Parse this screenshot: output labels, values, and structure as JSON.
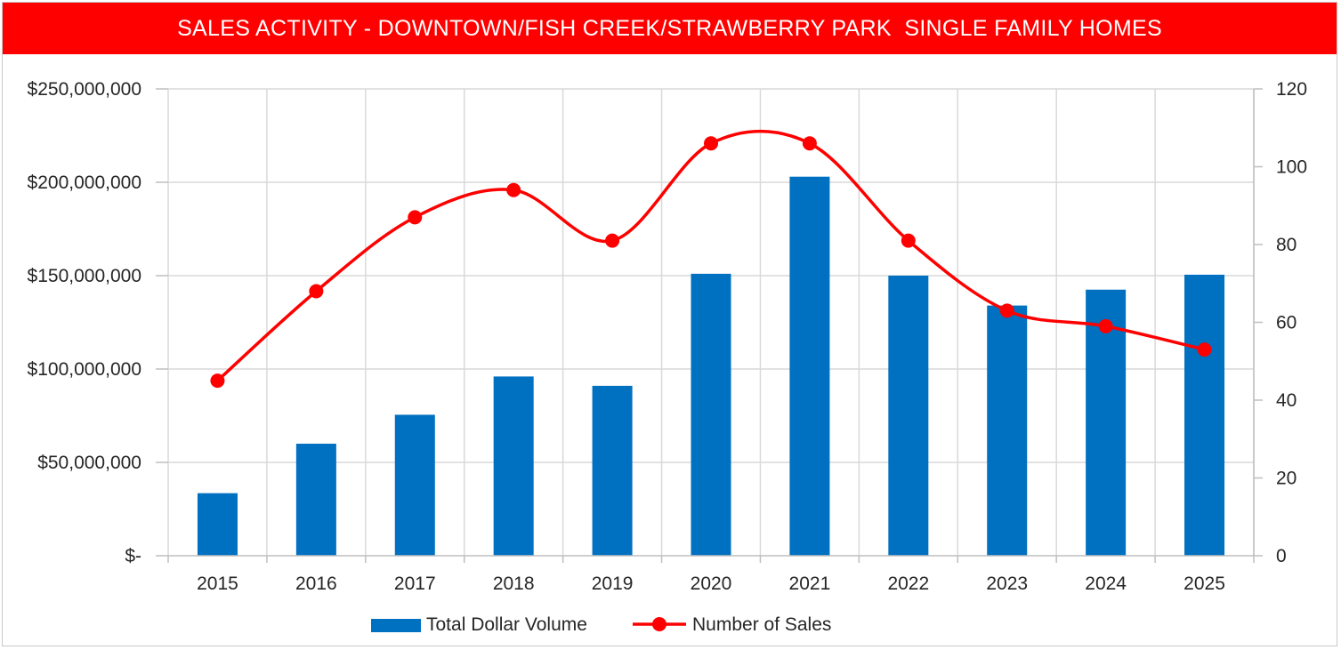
{
  "chart_data": {
    "type": "bar+line",
    "title": "SALES ACTIVITY - DOWNTOWN/FISH CREEK/STRAWBERRY PARK  SINGLE FAMILY HOMES",
    "categories": [
      "2015",
      "2016",
      "2017",
      "2018",
      "2019",
      "2020",
      "2021",
      "2022",
      "2023",
      "2024",
      "2025"
    ],
    "series": [
      {
        "name": "Total Dollar Volume",
        "kind": "bar",
        "axis": "left",
        "color": "#0070c0",
        "values": [
          33500000,
          60000000,
          75500000,
          96000000,
          91000000,
          151000000,
          203000000,
          150000000,
          134000000,
          142500000,
          150500000
        ]
      },
      {
        "name": "Number of Sales",
        "kind": "line",
        "axis": "right",
        "color": "#ff0000",
        "values": [
          45,
          68,
          87,
          94,
          81,
          106,
          106,
          81,
          63,
          59,
          53
        ]
      }
    ],
    "y_left": {
      "ylim": [
        0,
        250000000
      ],
      "ticks": [
        0,
        50000000,
        100000000,
        150000000,
        200000000,
        250000000
      ],
      "tick_labels": [
        "$-",
        "$50,000,000",
        "$100,000,000",
        "$150,000,000",
        "$200,000,000",
        "$250,000,000"
      ]
    },
    "y_right": {
      "ylim": [
        0,
        120
      ],
      "ticks": [
        0,
        20,
        40,
        60,
        80,
        100,
        120
      ],
      "tick_labels": [
        "0",
        "20",
        "40",
        "60",
        "80",
        "100",
        "120"
      ]
    },
    "grid": true,
    "legend_position": "bottom-center",
    "colors": {
      "title_bg": "#ff0000",
      "title_text": "#ffffff",
      "grid": "#d9d9d9"
    }
  }
}
